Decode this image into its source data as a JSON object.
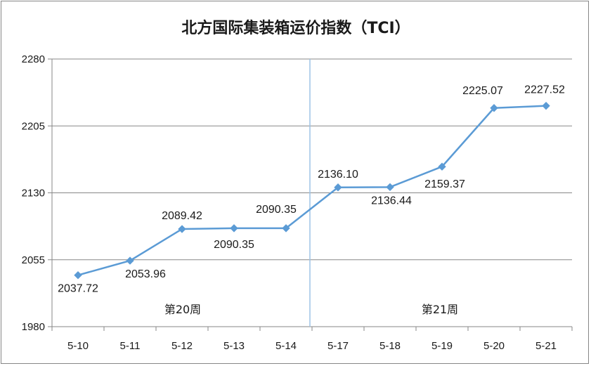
{
  "chart_data": {
    "type": "line",
    "title": "北方国际集装箱运价指数（TCI）",
    "xlabel": "",
    "ylabel": "",
    "categories": [
      "5-10",
      "5-11",
      "5-12",
      "5-13",
      "5-14",
      "5-17",
      "5-18",
      "5-19",
      "5-20",
      "5-21"
    ],
    "series": [
      {
        "values": [
          2037.72,
          2053.96,
          2089.42,
          2090.35,
          2090.35,
          2136.1,
          2136.44,
          2159.37,
          2225.07,
          2227.52
        ],
        "labels": [
          "2037.72",
          "2053.96",
          "2089.42",
          "2090.35",
          "2090.35",
          "2136.10",
          "2136.44",
          "2159.37",
          "2225.07",
          "2227.52"
        ],
        "color": "#5b9bd5"
      }
    ],
    "ylim": [
      1980,
      2280
    ],
    "yticks": [
      1980,
      2055,
      2130,
      2205,
      2280
    ],
    "yticks_text": [
      "1980",
      "2055",
      "2130",
      "2205",
      "2280"
    ],
    "grid": true,
    "week_labels": [
      "第20周",
      "第21周"
    ],
    "divider_color": "#9dc3e6",
    "grid_color": "#878787"
  }
}
